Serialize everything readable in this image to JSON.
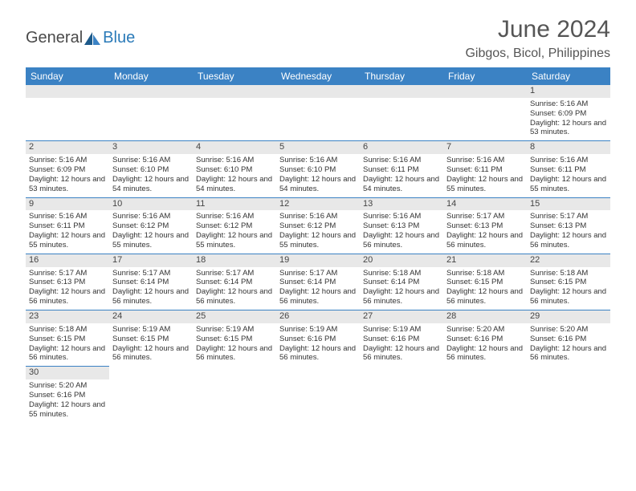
{
  "brand": {
    "general": "General",
    "blue": "Blue"
  },
  "title": "June 2024",
  "location": "Gibgos, Bicol, Philippines",
  "colors": {
    "header_bg": "#3b82c4",
    "header_text": "#ffffff",
    "daynum_bg": "#e8e8e8",
    "row_border": "#3b82c4",
    "text": "#333333",
    "title_text": "#555555",
    "logo_gray": "#4a4a4a",
    "logo_blue": "#2a7ab8"
  },
  "fonts": {
    "title_size_pt": 22,
    "location_size_pt": 12,
    "weekday_size_pt": 9,
    "cell_size_pt": 7,
    "daynum_size_pt": 8
  },
  "weekdays": [
    "Sunday",
    "Monday",
    "Tuesday",
    "Wednesday",
    "Thursday",
    "Friday",
    "Saturday"
  ],
  "weeks": [
    [
      null,
      null,
      null,
      null,
      null,
      null,
      {
        "n": "1",
        "sr": "5:16 AM",
        "ss": "6:09 PM",
        "dl": "12 hours and 53 minutes."
      }
    ],
    [
      {
        "n": "2",
        "sr": "5:16 AM",
        "ss": "6:09 PM",
        "dl": "12 hours and 53 minutes."
      },
      {
        "n": "3",
        "sr": "5:16 AM",
        "ss": "6:10 PM",
        "dl": "12 hours and 54 minutes."
      },
      {
        "n": "4",
        "sr": "5:16 AM",
        "ss": "6:10 PM",
        "dl": "12 hours and 54 minutes."
      },
      {
        "n": "5",
        "sr": "5:16 AM",
        "ss": "6:10 PM",
        "dl": "12 hours and 54 minutes."
      },
      {
        "n": "6",
        "sr": "5:16 AM",
        "ss": "6:11 PM",
        "dl": "12 hours and 54 minutes."
      },
      {
        "n": "7",
        "sr": "5:16 AM",
        "ss": "6:11 PM",
        "dl": "12 hours and 55 minutes."
      },
      {
        "n": "8",
        "sr": "5:16 AM",
        "ss": "6:11 PM",
        "dl": "12 hours and 55 minutes."
      }
    ],
    [
      {
        "n": "9",
        "sr": "5:16 AM",
        "ss": "6:11 PM",
        "dl": "12 hours and 55 minutes."
      },
      {
        "n": "10",
        "sr": "5:16 AM",
        "ss": "6:12 PM",
        "dl": "12 hours and 55 minutes."
      },
      {
        "n": "11",
        "sr": "5:16 AM",
        "ss": "6:12 PM",
        "dl": "12 hours and 55 minutes."
      },
      {
        "n": "12",
        "sr": "5:16 AM",
        "ss": "6:12 PM",
        "dl": "12 hours and 55 minutes."
      },
      {
        "n": "13",
        "sr": "5:16 AM",
        "ss": "6:13 PM",
        "dl": "12 hours and 56 minutes."
      },
      {
        "n": "14",
        "sr": "5:17 AM",
        "ss": "6:13 PM",
        "dl": "12 hours and 56 minutes."
      },
      {
        "n": "15",
        "sr": "5:17 AM",
        "ss": "6:13 PM",
        "dl": "12 hours and 56 minutes."
      }
    ],
    [
      {
        "n": "16",
        "sr": "5:17 AM",
        "ss": "6:13 PM",
        "dl": "12 hours and 56 minutes."
      },
      {
        "n": "17",
        "sr": "5:17 AM",
        "ss": "6:14 PM",
        "dl": "12 hours and 56 minutes."
      },
      {
        "n": "18",
        "sr": "5:17 AM",
        "ss": "6:14 PM",
        "dl": "12 hours and 56 minutes."
      },
      {
        "n": "19",
        "sr": "5:17 AM",
        "ss": "6:14 PM",
        "dl": "12 hours and 56 minutes."
      },
      {
        "n": "20",
        "sr": "5:18 AM",
        "ss": "6:14 PM",
        "dl": "12 hours and 56 minutes."
      },
      {
        "n": "21",
        "sr": "5:18 AM",
        "ss": "6:15 PM",
        "dl": "12 hours and 56 minutes."
      },
      {
        "n": "22",
        "sr": "5:18 AM",
        "ss": "6:15 PM",
        "dl": "12 hours and 56 minutes."
      }
    ],
    [
      {
        "n": "23",
        "sr": "5:18 AM",
        "ss": "6:15 PM",
        "dl": "12 hours and 56 minutes."
      },
      {
        "n": "24",
        "sr": "5:19 AM",
        "ss": "6:15 PM",
        "dl": "12 hours and 56 minutes."
      },
      {
        "n": "25",
        "sr": "5:19 AM",
        "ss": "6:15 PM",
        "dl": "12 hours and 56 minutes."
      },
      {
        "n": "26",
        "sr": "5:19 AM",
        "ss": "6:16 PM",
        "dl": "12 hours and 56 minutes."
      },
      {
        "n": "27",
        "sr": "5:19 AM",
        "ss": "6:16 PM",
        "dl": "12 hours and 56 minutes."
      },
      {
        "n": "28",
        "sr": "5:20 AM",
        "ss": "6:16 PM",
        "dl": "12 hours and 56 minutes."
      },
      {
        "n": "29",
        "sr": "5:20 AM",
        "ss": "6:16 PM",
        "dl": "12 hours and 56 minutes."
      }
    ],
    [
      {
        "n": "30",
        "sr": "5:20 AM",
        "ss": "6:16 PM",
        "dl": "12 hours and 55 minutes."
      },
      null,
      null,
      null,
      null,
      null,
      null
    ]
  ],
  "labels": {
    "sunrise": "Sunrise:",
    "sunset": "Sunset:",
    "daylight": "Daylight:"
  }
}
